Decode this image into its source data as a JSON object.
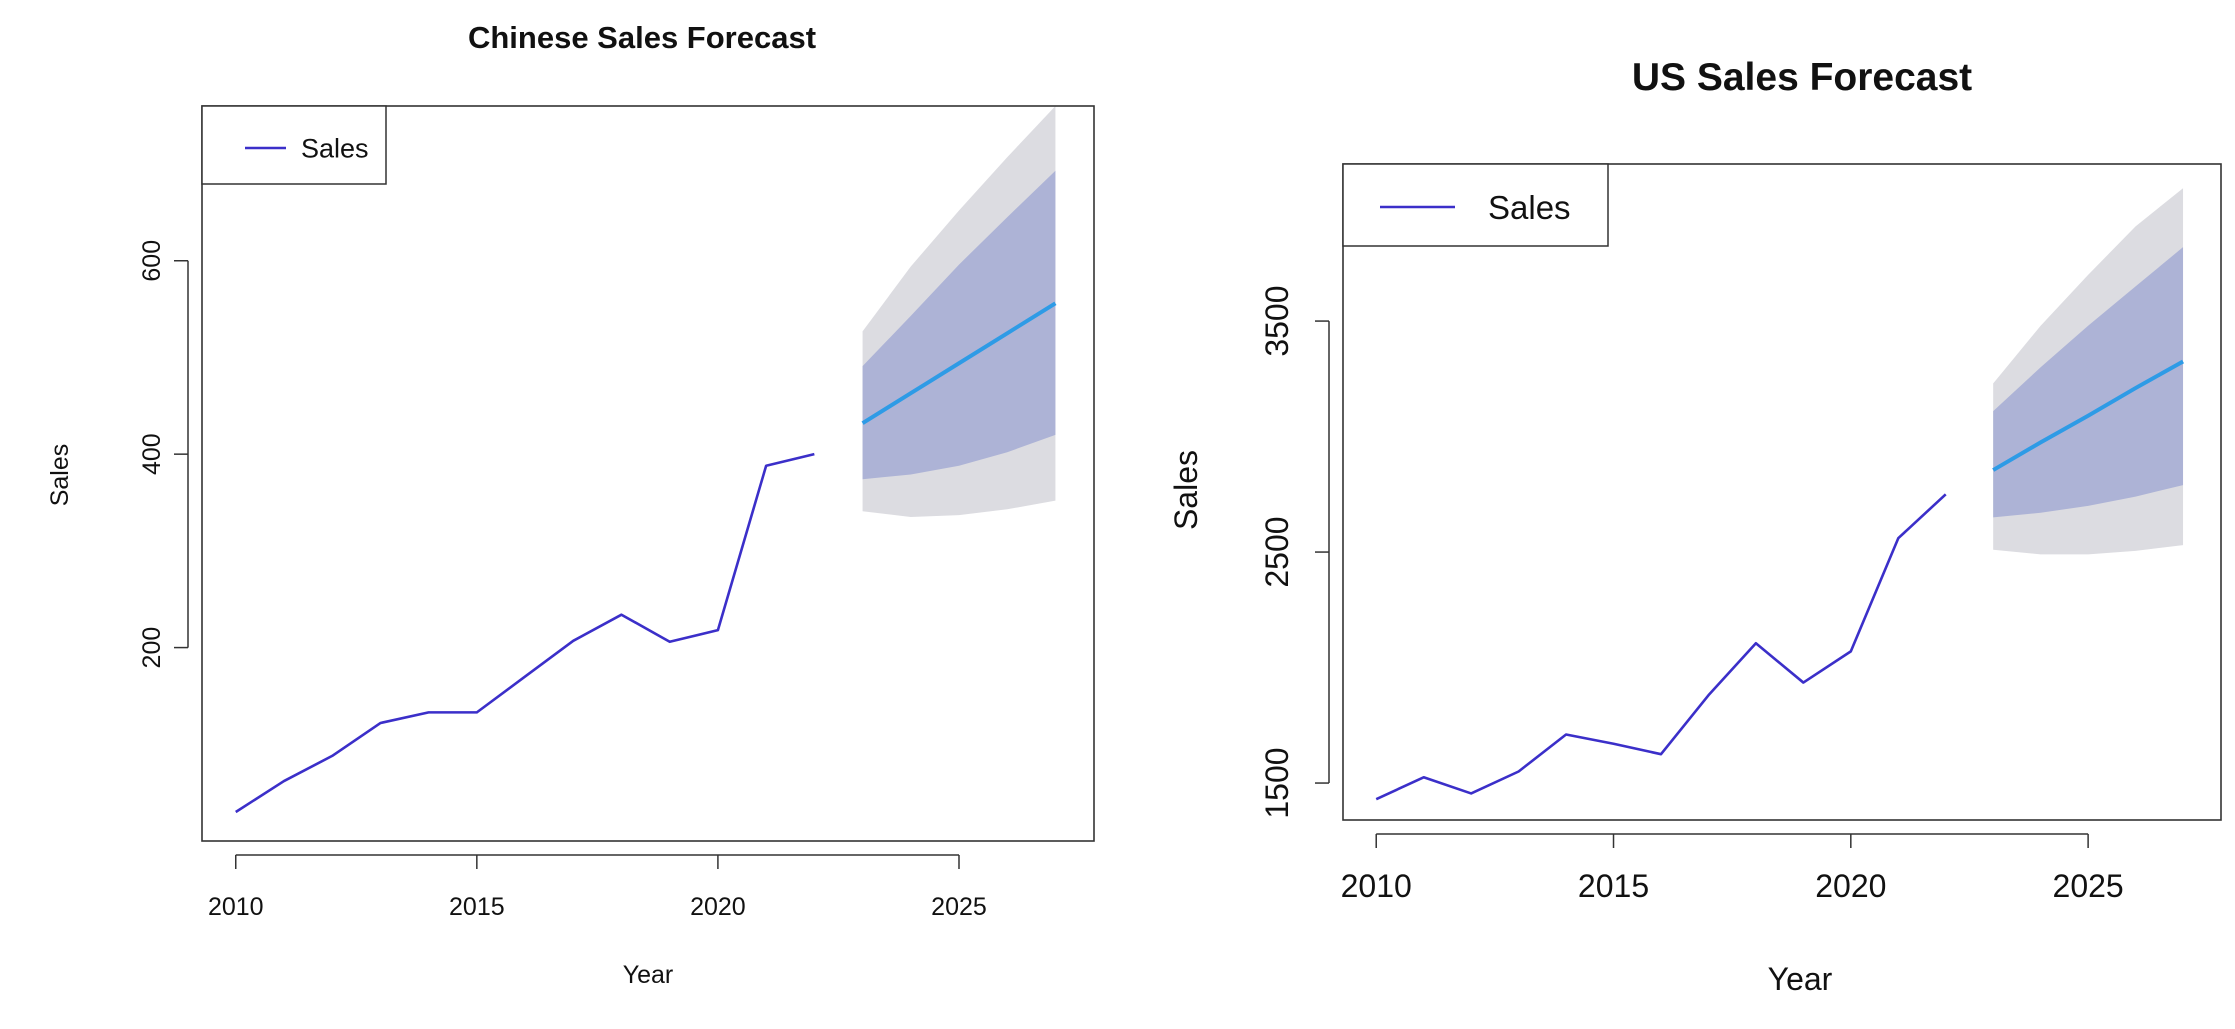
{
  "chart_data": [
    {
      "type": "line",
      "title": "Chinese Sales Forecast",
      "xlabel": "Year",
      "ylabel": "Sales",
      "xlim": [
        2009.3,
        2027.8
      ],
      "ylim": [
        0,
        760
      ],
      "xticks": [
        2010,
        2015,
        2020,
        2025
      ],
      "yticks": [
        200,
        400,
        600
      ],
      "legend": {
        "position": "top-left",
        "label": "Sales"
      },
      "series": [
        {
          "name": "Sales",
          "x": [
            2010,
            2011,
            2012,
            2013,
            2014,
            2015,
            2016,
            2017,
            2018,
            2019,
            2020,
            2021,
            2022
          ],
          "values": [
            30,
            62,
            88,
            122,
            133,
            133,
            170,
            207,
            234,
            206,
            218,
            388,
            400
          ]
        }
      ],
      "forecast": {
        "x": [
          2023,
          2024,
          2025,
          2026,
          2027
        ],
        "mean": [
          432,
          463,
          494,
          525,
          556
        ],
        "lo80": [
          374,
          379,
          388,
          402,
          420
        ],
        "hi80": [
          491,
          543,
          596,
          645,
          693
        ],
        "lo95": [
          341,
          335,
          337,
          343,
          352
        ],
        "hi95": [
          527,
          594,
          652,
          707,
          760
        ]
      },
      "colors": {
        "line": "#3b2fc9",
        "forecast": "#2e9be6",
        "band80": "#adb3d6",
        "band95": "#dcdce1"
      }
    },
    {
      "type": "line",
      "title": "US Sales Forecast",
      "xlabel": "Year",
      "ylabel": "Sales",
      "xlim": [
        2009.3,
        2027.8
      ],
      "ylim": [
        1340,
        4180
      ],
      "xticks": [
        2010,
        2015,
        2020,
        2025
      ],
      "yticks": [
        1500,
        2500,
        3500
      ],
      "legend": {
        "position": "top-left",
        "label": "Sales"
      },
      "series": [
        {
          "name": "Sales",
          "x": [
            2010,
            2011,
            2012,
            2013,
            2014,
            2015,
            2016,
            2017,
            2018,
            2019,
            2020,
            2021,
            2022
          ],
          "values": [
            1430,
            1525,
            1455,
            1550,
            1710,
            1670,
            1625,
            1880,
            2105,
            1935,
            2070,
            2560,
            2750
          ]
        }
      ],
      "forecast": {
        "x": [
          2023,
          2024,
          2025,
          2026,
          2027
        ],
        "mean": [
          2855,
          2975,
          3090,
          3210,
          3325
        ],
        "lo80": [
          2650,
          2670,
          2700,
          2740,
          2790
        ],
        "hi80": [
          3110,
          3300,
          3480,
          3650,
          3820
        ],
        "lo95": [
          2510,
          2490,
          2490,
          2505,
          2530
        ],
        "hi95": [
          3230,
          3480,
          3700,
          3910,
          4075
        ]
      },
      "colors": {
        "line": "#3b2fc9",
        "forecast": "#2e9be6",
        "band80": "#adb3d6",
        "band95": "#dcdce1"
      }
    }
  ]
}
